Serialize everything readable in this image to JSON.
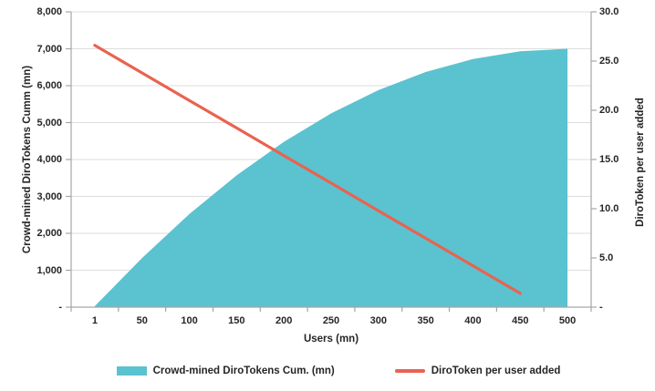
{
  "chart_data": {
    "type": "area-line-combo",
    "title": "",
    "categories": [
      "1",
      "50",
      "100",
      "150",
      "200",
      "250",
      "300",
      "350",
      "400",
      "450",
      "500"
    ],
    "series": [
      {
        "name": "Crowd-mined DiroTokens Cum. (mn)",
        "type": "area",
        "axis": "left",
        "color": "#5BC2D0",
        "values": [
          27,
          1330,
          2520,
          3570,
          4480,
          5250,
          5880,
          6370,
          6720,
          6930,
          7000
        ]
      },
      {
        "name": "DiroToken per user added",
        "type": "line",
        "axis": "right",
        "color": "#E9634F",
        "values": [
          26.6,
          23.8,
          21.0,
          18.2,
          15.4,
          12.6,
          9.8,
          7.0,
          4.2,
          1.4,
          null
        ]
      }
    ],
    "left_axis": {
      "label": "Crowd-mined DiroTokens Cumm (mn)",
      "min": 0,
      "max": 8000,
      "tick_values": [
        0,
        1000,
        2000,
        3000,
        4000,
        5000,
        6000,
        7000,
        8000
      ],
      "tick_labels": [
        "-",
        "1,000",
        "2,000",
        "3,000",
        "4,000",
        "5,000",
        "6,000",
        "7,000",
        "8,000"
      ]
    },
    "right_axis": {
      "label": "DiroToken per user added",
      "min": 0,
      "max": 30,
      "tick_values": [
        0,
        5,
        10,
        15,
        20,
        25,
        30
      ],
      "tick_labels": [
        "-",
        "5.0",
        "10.0",
        "15.0",
        "20.0",
        "25.0",
        "30.0"
      ]
    },
    "x_axis": {
      "label": "Users (mn)",
      "tick_labels": [
        "1",
        "50",
        "100",
        "150",
        "200",
        "250",
        "300",
        "350",
        "400",
        "450",
        "500"
      ]
    },
    "grid": "horizontal",
    "legend_position": "bottom",
    "style": {
      "background": "#FFFFFF",
      "gridline_color": "#DEDEDE",
      "axis_color": "#A6A6A6",
      "text_color": "#262626"
    }
  },
  "legend": {
    "items": [
      {
        "label": "Crowd-mined DiroTokens Cum. (mn)",
        "color": "#5BC2D0",
        "shape": "rect"
      },
      {
        "label": "DiroToken per user added",
        "color": "#E9634F",
        "shape": "line"
      }
    ]
  }
}
